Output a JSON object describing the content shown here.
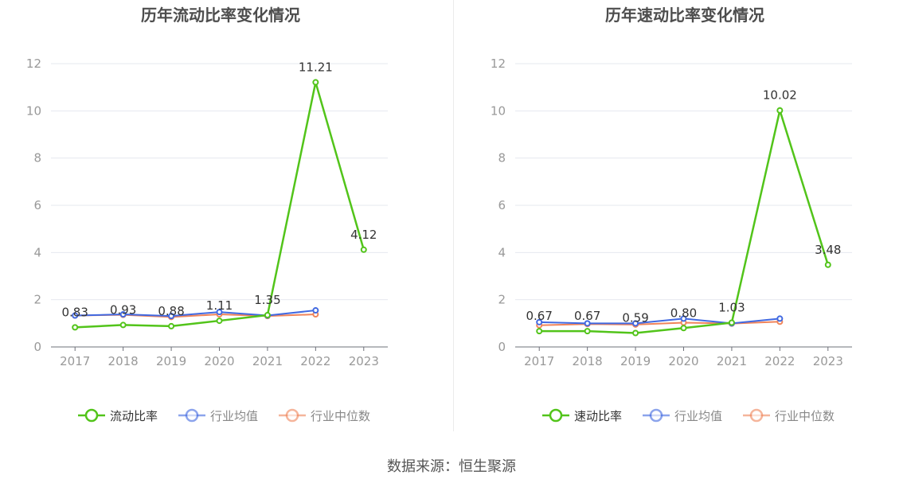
{
  "source_text": "数据来源：恒生聚源",
  "colors": {
    "green": "#52c41a",
    "blue": "#4169e1",
    "orange": "#f0845a",
    "axis_text": "#999999",
    "grid": "#e6e8ef",
    "title": "#4d4d4d",
    "label": "#333333"
  },
  "chart_data": [
    {
      "type": "line",
      "title": "历年流动比率变化情况",
      "categories": [
        "2017",
        "2018",
        "2019",
        "2020",
        "2021",
        "2022",
        "2023"
      ],
      "yticks": [
        "0",
        "2",
        "4",
        "6",
        "8",
        "10",
        "12"
      ],
      "ylim": [
        0,
        12
      ],
      "grid": true,
      "legend_position": "bottom",
      "series": [
        {
          "name": "流动比率",
          "color": "#52c41a",
          "values": [
            0.83,
            0.93,
            0.88,
            1.11,
            1.35,
            11.21,
            4.12
          ],
          "labels": [
            "0.83",
            "0.93",
            "0.88",
            "1.11",
            "1.35",
            "11.21",
            "4.12"
          ]
        },
        {
          "name": "行业均值",
          "color": "#4169e1",
          "values": [
            1.33,
            1.38,
            1.31,
            1.48,
            1.33,
            1.55,
            null
          ]
        },
        {
          "name": "行业中位数",
          "color": "#f0845a",
          "values": [
            1.33,
            1.36,
            1.27,
            1.38,
            1.31,
            1.38,
            null
          ]
        }
      ]
    },
    {
      "type": "line",
      "title": "历年速动比率变化情况",
      "categories": [
        "2017",
        "2018",
        "2019",
        "2020",
        "2021",
        "2022",
        "2023"
      ],
      "yticks": [
        "0",
        "2",
        "4",
        "6",
        "8",
        "10",
        "12"
      ],
      "ylim": [
        0,
        12
      ],
      "grid": true,
      "legend_position": "bottom",
      "series": [
        {
          "name": "速动比率",
          "color": "#52c41a",
          "values": [
            0.67,
            0.67,
            0.59,
            0.8,
            1.03,
            10.02,
            3.48
          ],
          "labels": [
            "0.67",
            "0.67",
            "0.59",
            "0.80",
            "1.03",
            "10.02",
            "3.48"
          ]
        },
        {
          "name": "行业均值",
          "color": "#4169e1",
          "values": [
            1.05,
            1.0,
            1.0,
            1.2,
            1.0,
            1.2,
            null
          ]
        },
        {
          "name": "行业中位数",
          "color": "#f0845a",
          "values": [
            0.92,
            0.97,
            0.95,
            1.03,
            0.99,
            1.07,
            null
          ]
        }
      ]
    }
  ]
}
